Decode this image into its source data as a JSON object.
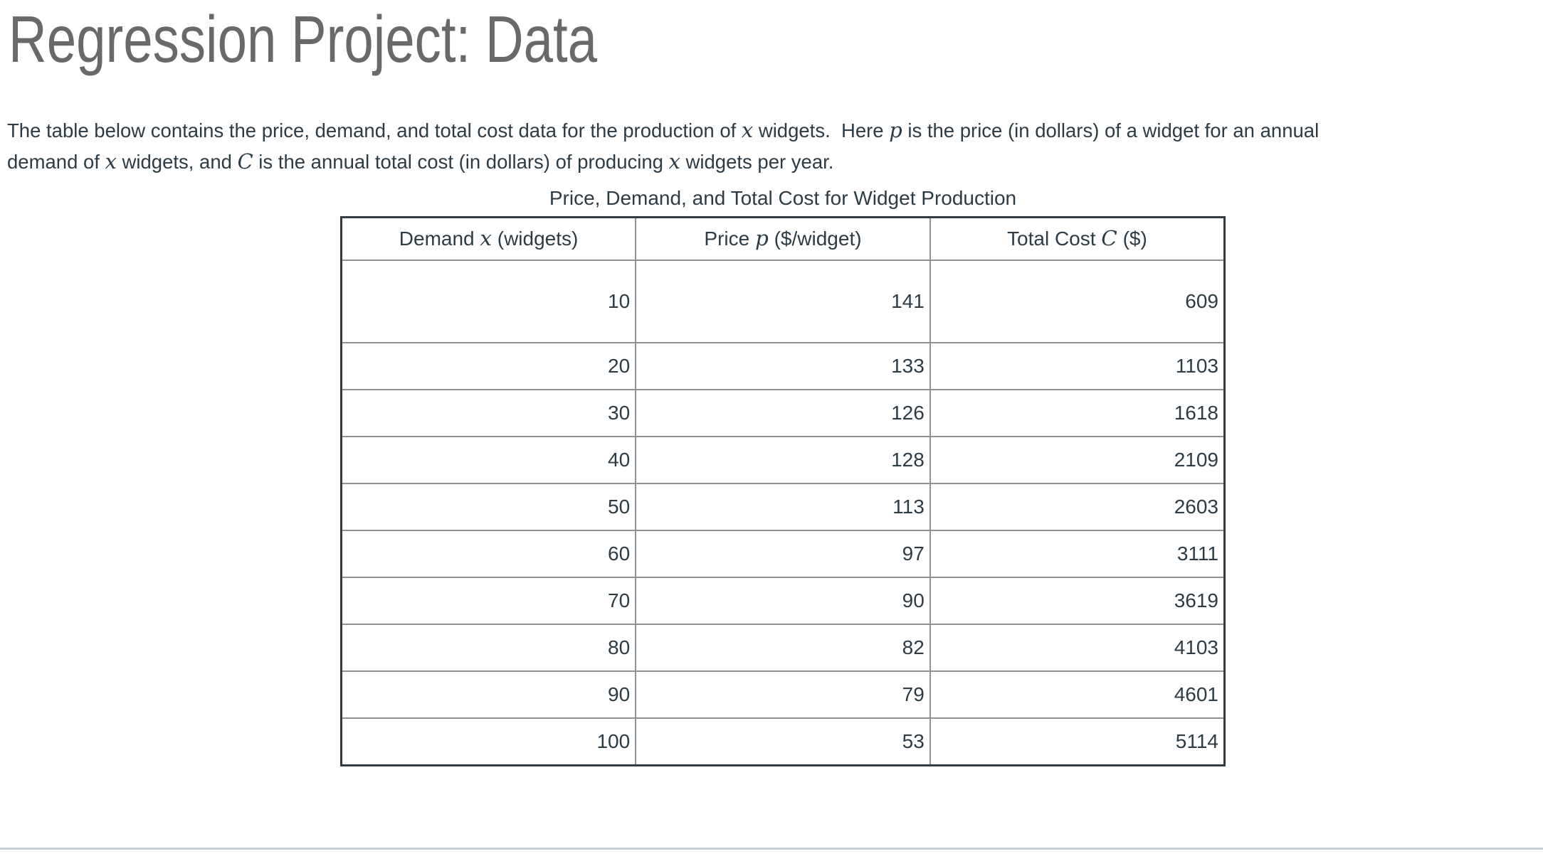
{
  "page": {
    "title": "Regression Project: Data",
    "background_color": "#ffffff",
    "text_color": "#2D3B45",
    "heading_color": "#696969",
    "divider_color": "#C7CDD1",
    "table_outer_border_color": "#333b42",
    "table_inner_border_color": "#8e9296"
  },
  "intro": {
    "segments": [
      {
        "t": "The table below contains the price, demand, and total cost data for the production of "
      },
      {
        "m": "x"
      },
      {
        "t": " widgets.  Here "
      },
      {
        "m": "p"
      },
      {
        "t": " is the price (in dollars) of a widget for an annual"
      },
      {
        "br": true
      },
      {
        "t": "demand of "
      },
      {
        "m": "x"
      },
      {
        "t": " widgets, and "
      },
      {
        "m": "C"
      },
      {
        "t": " is the annual total cost (in dollars) of producing "
      },
      {
        "m": "x"
      },
      {
        "t": " widgets per year."
      }
    ]
  },
  "table": {
    "caption": "Price, Demand, and Total Cost for Widget Production",
    "headers": [
      {
        "name": "demand",
        "segments": [
          {
            "t": "Demand "
          },
          {
            "m": "x"
          },
          {
            "t": " (widgets)"
          }
        ]
      },
      {
        "name": "price",
        "segments": [
          {
            "t": "Price "
          },
          {
            "m": "p"
          },
          {
            "t": " ($/widget)"
          }
        ]
      },
      {
        "name": "total-cost",
        "segments": [
          {
            "t": "Total Cost "
          },
          {
            "m": "C"
          },
          {
            "t": " ($)"
          }
        ]
      }
    ],
    "rows": [
      [
        "10",
        "141",
        "609"
      ],
      [
        "20",
        "133",
        "1103"
      ],
      [
        "30",
        "126",
        "1618"
      ],
      [
        "40",
        "128",
        "2109"
      ],
      [
        "50",
        "113",
        "2603"
      ],
      [
        "60",
        "97",
        "3111"
      ],
      [
        "70",
        "90",
        "3619"
      ],
      [
        "80",
        "82",
        "4103"
      ],
      [
        "90",
        "79",
        "4601"
      ],
      [
        "100",
        "53",
        "5114"
      ]
    ]
  },
  "chart_data": {
    "type": "table",
    "title": "Price, Demand, and Total Cost for Widget Production",
    "columns": [
      "Demand x (widgets)",
      "Price p ($/widget)",
      "Total Cost C ($)"
    ],
    "rows": [
      [
        10,
        141,
        609
      ],
      [
        20,
        133,
        1103
      ],
      [
        30,
        126,
        1618
      ],
      [
        40,
        128,
        2109
      ],
      [
        50,
        113,
        2603
      ],
      [
        60,
        97,
        3111
      ],
      [
        70,
        90,
        3619
      ],
      [
        80,
        82,
        4103
      ],
      [
        90,
        79,
        4601
      ],
      [
        100,
        53,
        5114
      ]
    ]
  }
}
